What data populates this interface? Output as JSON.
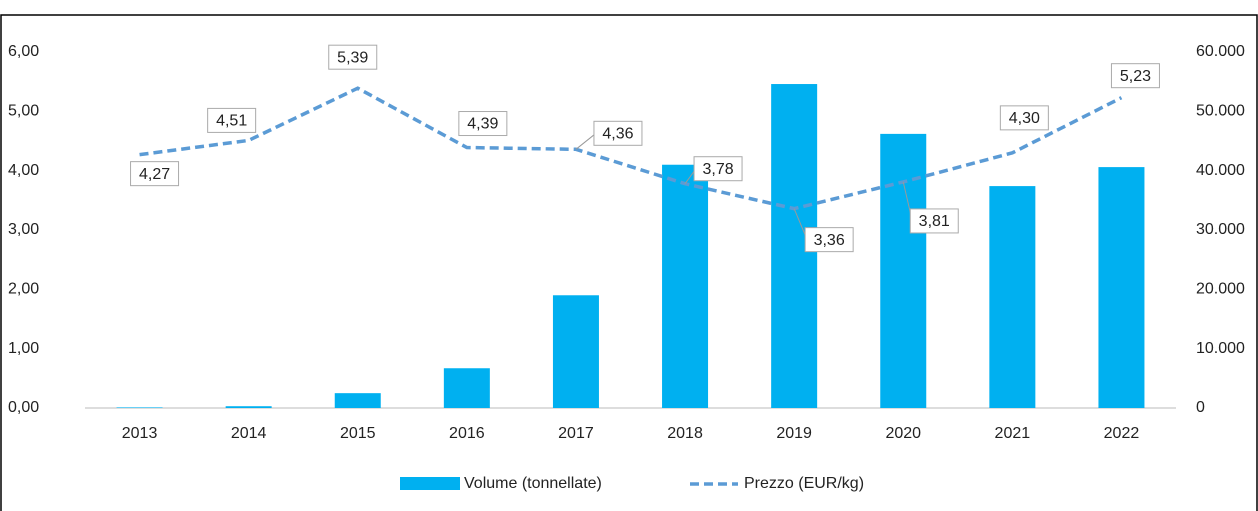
{
  "chart_data": {
    "type": "bar_line",
    "categories": [
      "2013",
      "2014",
      "2015",
      "2016",
      "2017",
      "2018",
      "2019",
      "2020",
      "2021",
      "2022"
    ],
    "series": [
      {
        "name": "Volume (tonnellate)",
        "type": "bar",
        "axis": "y2",
        "color": "#00b0f0",
        "values": [
          100,
          300,
          2500,
          6700,
          19000,
          41000,
          54600,
          46200,
          37400,
          40600
        ]
      },
      {
        "name": "Prezzo (EUR/kg)",
        "type": "line",
        "dashed": true,
        "color": "#5b9bd5",
        "values": [
          4.27,
          4.51,
          5.39,
          4.39,
          4.36,
          3.78,
          3.36,
          3.81,
          4.3,
          5.23
        ],
        "value_labels": [
          "4,27",
          "4,51",
          "5,39",
          "4,39",
          "4,36",
          "3,78",
          "3,36",
          "3,81",
          "4,30",
          "5,23"
        ]
      }
    ],
    "ylim": [
      0,
      6
    ],
    "yticks": [
      {
        "value": 0,
        "label": "0,00"
      },
      {
        "value": 1,
        "label": "1,00"
      },
      {
        "value": 2,
        "label": "2,00"
      },
      {
        "value": 3,
        "label": "3,00"
      },
      {
        "value": 4,
        "label": "4,00"
      },
      {
        "value": 5,
        "label": "5,00"
      },
      {
        "value": 6,
        "label": "6,00"
      }
    ],
    "y2lim": [
      0,
      60000
    ],
    "y2ticks": [
      0,
      {
        "value": 10000,
        "label": "10.000"
      },
      {
        "value": 20000,
        "label": "20.000"
      },
      {
        "value": 30000,
        "label": "30.000"
      },
      {
        "value": 40000,
        "label": "40.000"
      },
      {
        "value": 50000,
        "label": "50.000"
      },
      {
        "value": 60000,
        "label": "60.000"
      }
    ],
    "legend": "bottom"
  }
}
